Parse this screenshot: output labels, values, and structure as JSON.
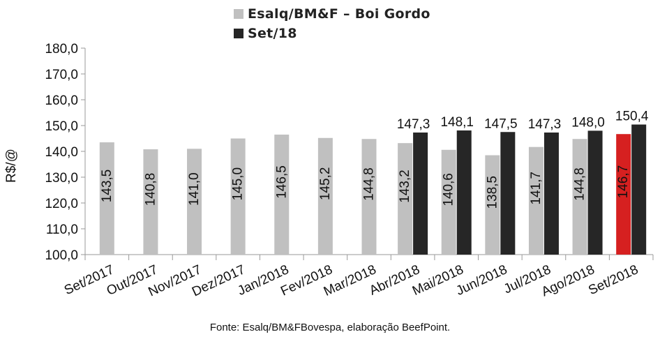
{
  "chart_data": {
    "type": "bar",
    "categories": [
      "Set/2017",
      "Out/2017",
      "Nov/2017",
      "Dez/2017",
      "Jan/2018",
      "Fev/2018",
      "Mar/2018",
      "Abr/2018",
      "Mai/2018",
      "Jun/2018",
      "Jul/2018",
      "Ago/2018",
      "Set/2018"
    ],
    "series": [
      {
        "name": "Esalq/BM&F – Boi Gordo",
        "values": [
          143.5,
          140.8,
          141.0,
          145.0,
          146.5,
          145.2,
          144.8,
          143.2,
          140.6,
          138.5,
          141.7,
          144.8,
          146.7
        ],
        "labels": [
          "143,5",
          "140,8",
          "141,0",
          "145,0",
          "146,5",
          "145,2",
          "144,8",
          "143,2",
          "140,6",
          "138,5",
          "141,7",
          "144,8",
          "146,7"
        ],
        "color": "#c0c0c0",
        "highlight_last_color": "#d62020"
      },
      {
        "name": "Set/18",
        "values": [
          null,
          null,
          null,
          null,
          null,
          null,
          null,
          147.3,
          148.1,
          147.5,
          147.3,
          148.0,
          150.4
        ],
        "labels": [
          null,
          null,
          null,
          null,
          null,
          null,
          null,
          "147,3",
          "148,1",
          "147,5",
          "147,3",
          "148,0",
          "150,4"
        ],
        "color": "#262626"
      }
    ],
    "ylabel": "R$/@",
    "ylim": [
      100,
      180
    ],
    "yticks": [
      "100,0",
      "110,0",
      "120,0",
      "130,0",
      "140,0",
      "150,0",
      "160,0",
      "170,0",
      "180,0"
    ],
    "grid": false,
    "legend_position": "top"
  },
  "legend": [
    {
      "label": "Esalq/BM&F – Boi Gordo",
      "color": "#c0c0c0"
    },
    {
      "label": "Set/18",
      "color": "#262626"
    }
  ],
  "source_note": "Fonte: Esalq/BM&FBovespa, elaboração BeefPoint."
}
